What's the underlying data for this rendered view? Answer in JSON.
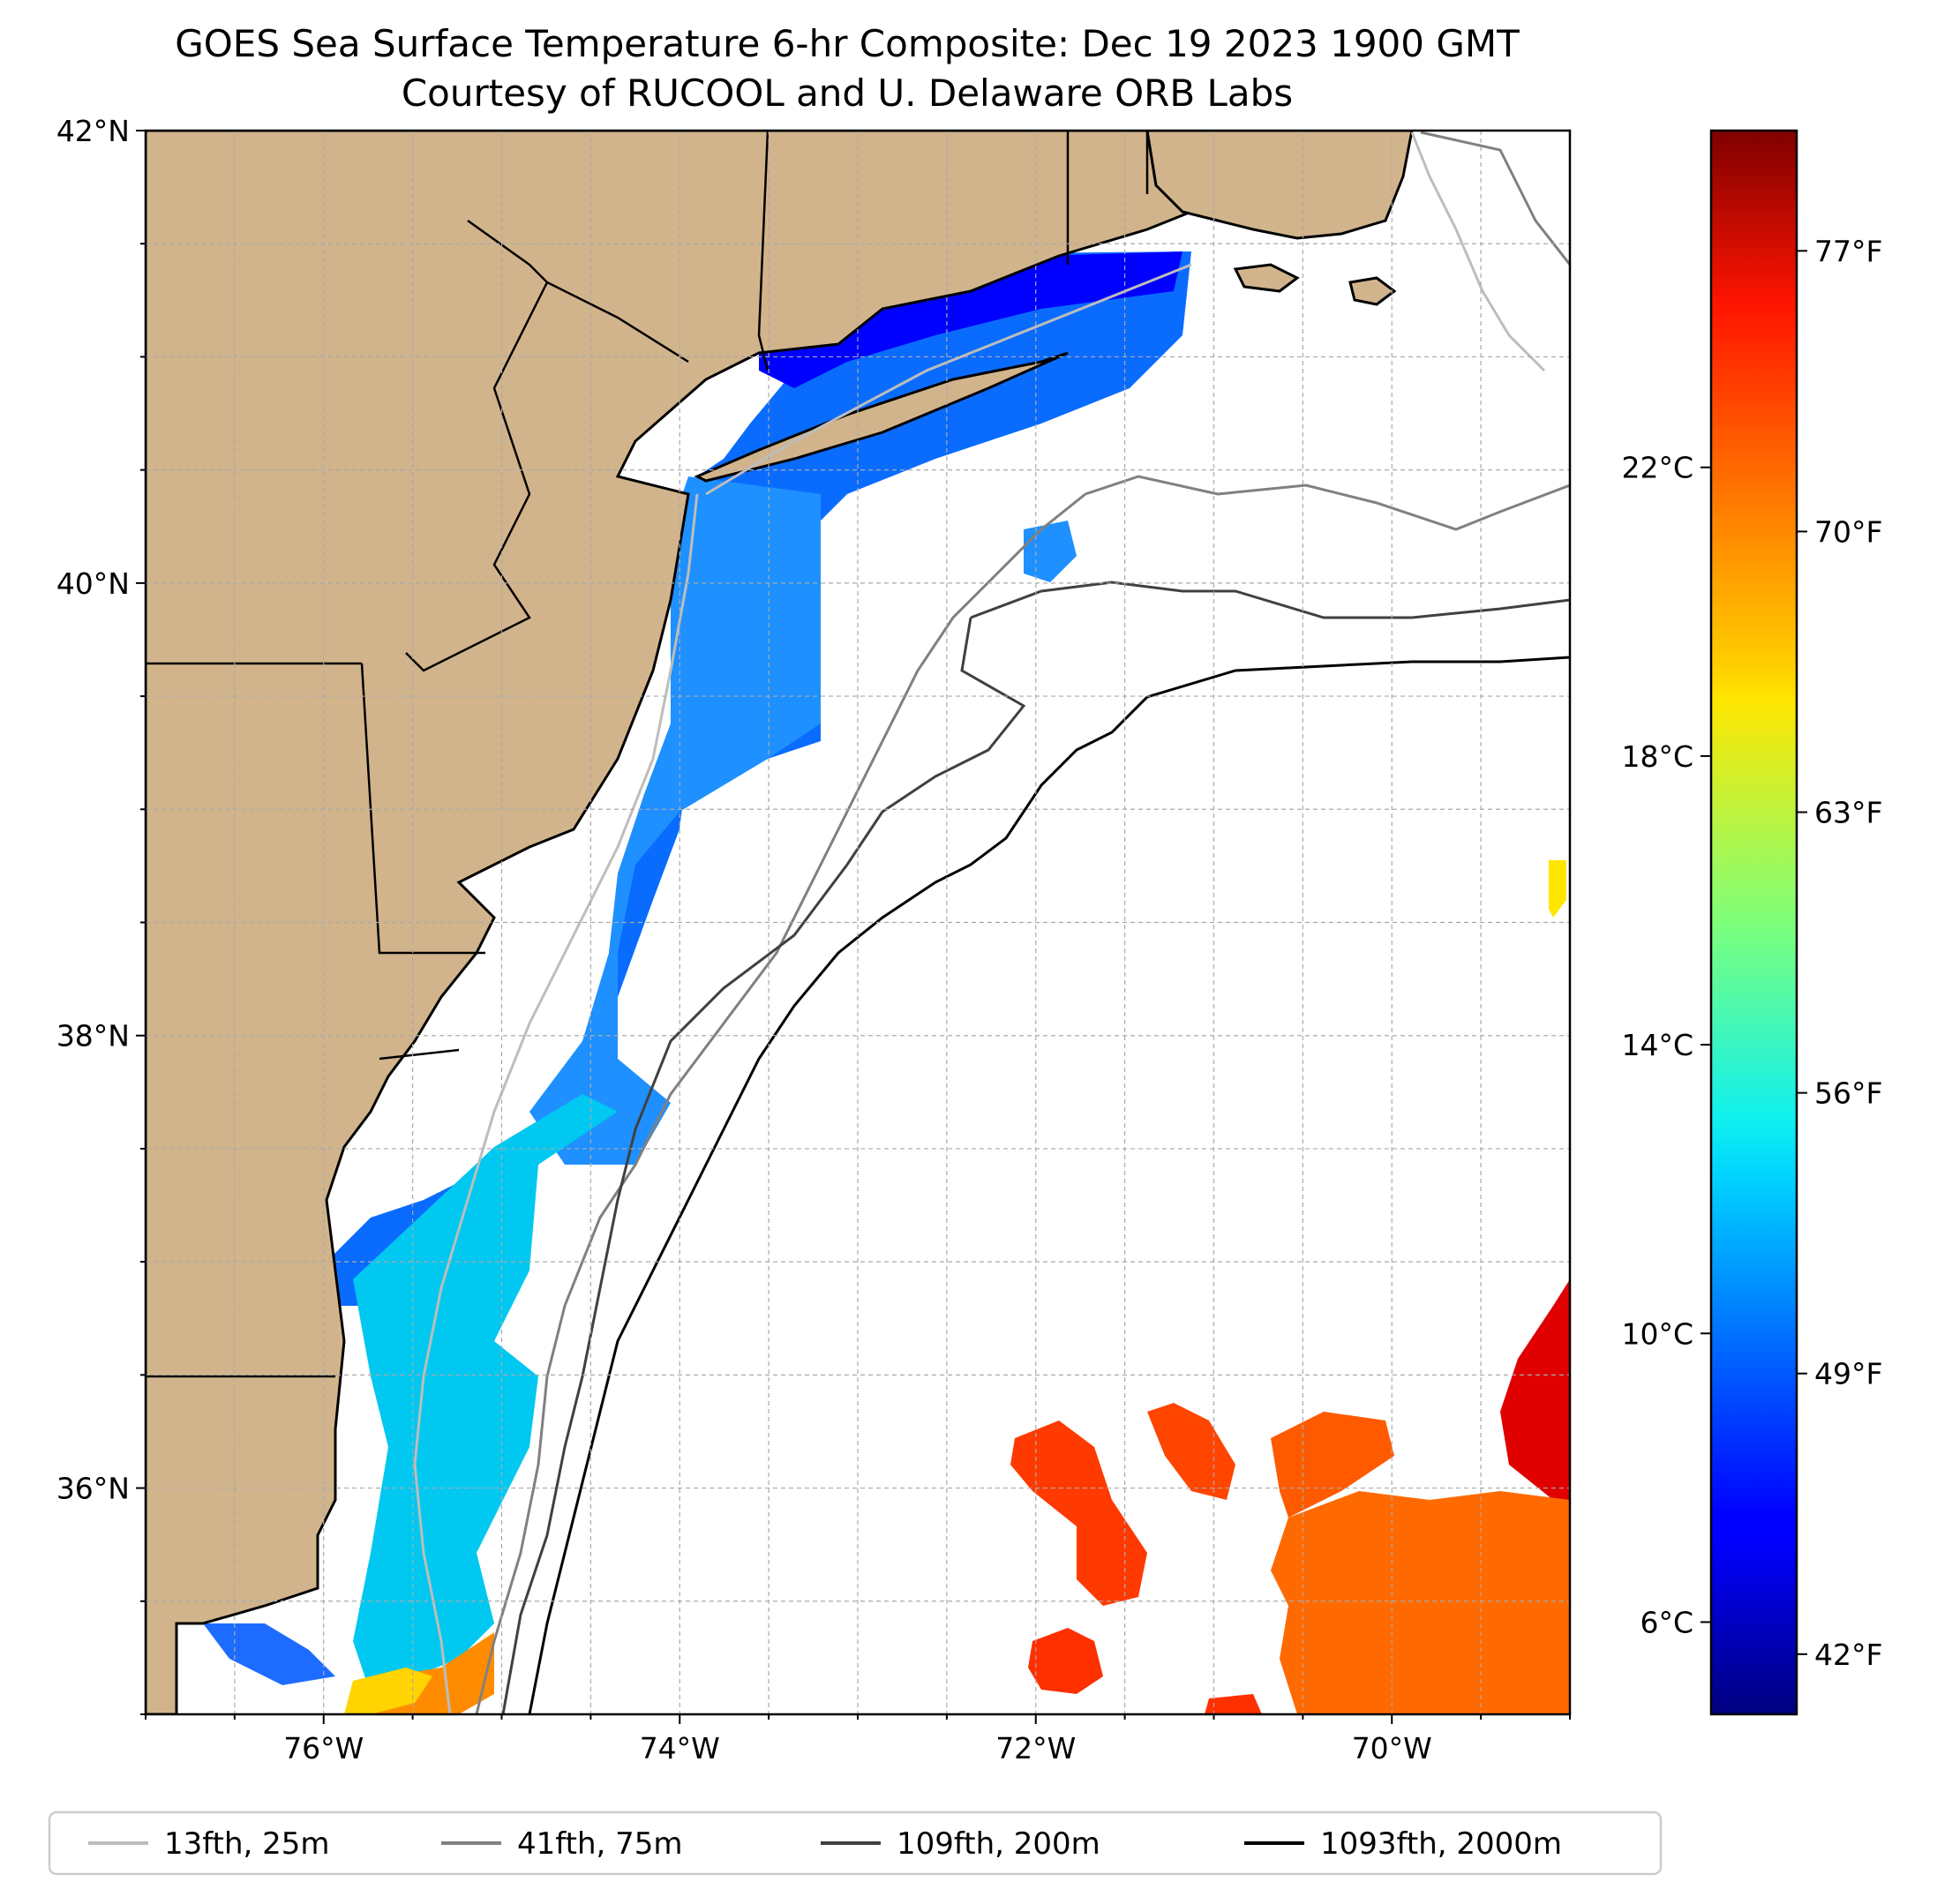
{
  "title_line1": "GOES Sea Surface Temperature 6-hr Composite: Dec 19 2023 1900 GMT",
  "title_line2": "Courtesy of RUCOOL and U. Delaware ORB Labs",
  "map": {
    "lon_range": [
      -77.0,
      -69.0
    ],
    "lat_range": [
      35.0,
      42.0
    ],
    "grid": true,
    "x_ticks": [
      {
        "value": -76,
        "label": "76°W"
      },
      {
        "value": -74,
        "label": "74°W"
      },
      {
        "value": -72,
        "label": "72°W"
      },
      {
        "value": -70,
        "label": "70°W"
      }
    ],
    "y_ticks": [
      {
        "value": 42,
        "label": "42°N"
      },
      {
        "value": 40,
        "label": "40°N"
      },
      {
        "value": 38,
        "label": "38°N"
      },
      {
        "value": 36,
        "label": "36°N"
      }
    ],
    "land_color": "#d2b48c"
  },
  "colorbar": {
    "colormap": "jet",
    "range_f": [
      40.5,
      80
    ],
    "celsius_ticks": [
      {
        "value": 6,
        "label": "6°C"
      },
      {
        "value": 10,
        "label": "10°C"
      },
      {
        "value": 14,
        "label": "14°C"
      },
      {
        "value": 18,
        "label": "18°C"
      },
      {
        "value": 22,
        "label": "22°C"
      }
    ],
    "fahrenheit_ticks": [
      {
        "value": 42,
        "label": "42°F"
      },
      {
        "value": 49,
        "label": "49°F"
      },
      {
        "value": 56,
        "label": "56°F"
      },
      {
        "value": 63,
        "label": "63°F"
      },
      {
        "value": 70,
        "label": "70°F"
      },
      {
        "value": 77,
        "label": "77°F"
      }
    ]
  },
  "legend": {
    "placement": "bottom",
    "entries": [
      {
        "label": "13fth, 25m",
        "color": "#bdbdbd"
      },
      {
        "label": "41fth, 75m",
        "color": "#808080"
      },
      {
        "label": "109fth, 200m",
        "color": "#404040"
      },
      {
        "label": "1093fth, 2000m",
        "color": "#000000"
      }
    ]
  }
}
